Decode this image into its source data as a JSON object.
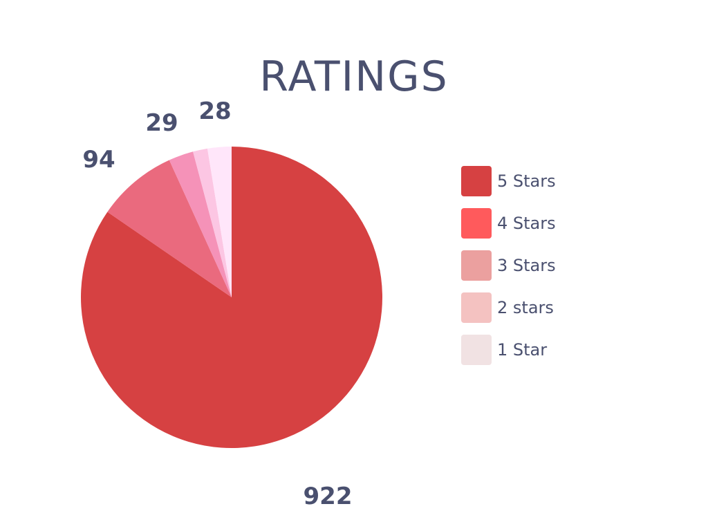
{
  "chart_data": {
    "type": "pie",
    "title": "RATINGS",
    "categories": [
      "5 Stars",
      "4 Stars",
      "3 Stars",
      "2 stars",
      "1 Star"
    ],
    "slices": [
      {
        "name": "5 Stars",
        "value": 922,
        "label": "922",
        "color": "#d64142"
      },
      {
        "name": "4 Stars",
        "value": 94,
        "label": "94",
        "color": "#ea6a7e"
      },
      {
        "name": "3 Stars",
        "value": 29,
        "label": "29",
        "color": "#f592b8"
      },
      {
        "name": "2 stars",
        "value": 17,
        "label": "",
        "color": "#fcc6e3"
      },
      {
        "name": "1 Star",
        "value": 28,
        "label": "28",
        "color": "#ffe6fa"
      }
    ],
    "legend": {
      "position": "right",
      "items": [
        {
          "label": "5 Stars",
          "color": "#d64142"
        },
        {
          "label": "4 Stars",
          "color": "#ff5a5c"
        },
        {
          "label": "3 Stars",
          "color": "#eba09f"
        },
        {
          "label": "2 stars",
          "color": "#f4c2c1"
        },
        {
          "label": "1 Star",
          "color": "#f1e2e3"
        }
      ]
    }
  }
}
